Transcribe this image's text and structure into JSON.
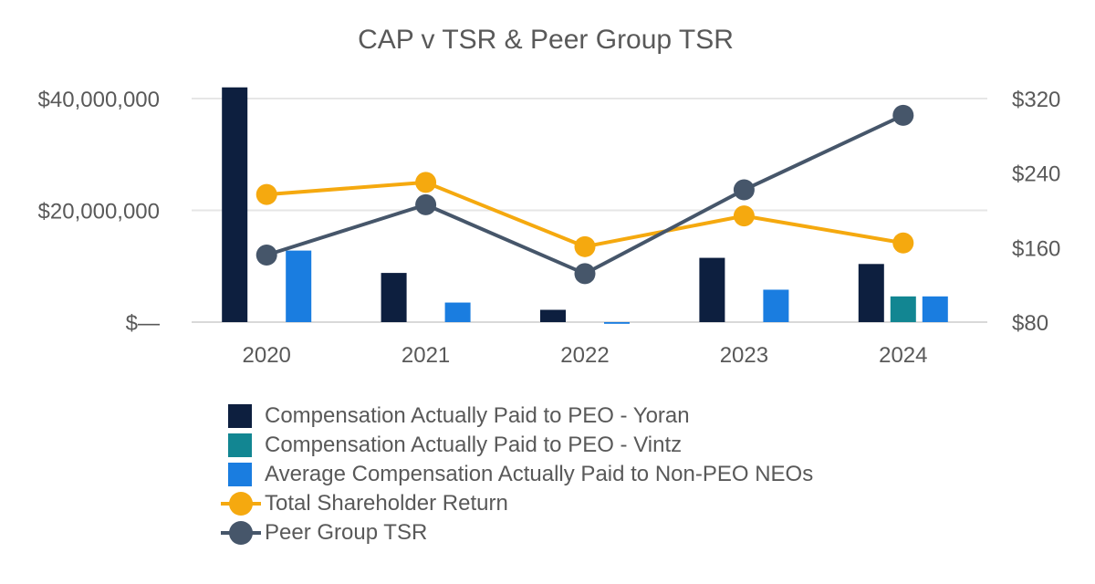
{
  "chart_data": {
    "type": "bar+line",
    "title": "CAP v TSR & Peer Group TSR",
    "categories": [
      "2020",
      "2021",
      "2022",
      "2023",
      "2024"
    ],
    "left_axis": {
      "ylim": [
        0,
        40000000
      ],
      "ticks": [
        0,
        20000000,
        40000000
      ],
      "tick_labels": [
        "$—",
        "$20,000,000",
        "$40,000,000"
      ]
    },
    "right_axis": {
      "ylim": [
        80,
        320
      ],
      "ticks": [
        80,
        160,
        240,
        320
      ],
      "tick_labels": [
        "$80",
        "$160",
        "$240",
        "$320"
      ]
    },
    "bar_series": [
      {
        "name": "Compensation Actually Paid to PEO - Yoran",
        "color": "#0d1f3f",
        "values": [
          42000000,
          8800000,
          2200000,
          11500000,
          10400000
        ]
      },
      {
        "name": "Compensation Actually Paid to PEO - Vintz",
        "color": "#128692",
        "values": [
          null,
          null,
          null,
          null,
          4600000
        ]
      },
      {
        "name": "Average Compensation Actually Paid to Non-PEO NEOs",
        "color": "#1a7de0",
        "values": [
          12800000,
          3500000,
          -300000,
          5800000,
          4600000
        ]
      }
    ],
    "line_series": [
      {
        "name": "Total Shareholder Return",
        "color": "#f5a90f",
        "values": [
          217,
          230,
          161,
          194,
          165
        ]
      },
      {
        "name": "Peer Group TSR",
        "color": "#46566a",
        "values": [
          152,
          206,
          132,
          222,
          302
        ]
      }
    ],
    "grid": true,
    "legend_position": "bottom"
  },
  "legend": {
    "items": [
      {
        "label": "Compensation Actually Paid to PEO - Yoran",
        "kind": "bar",
        "color": "#0d1f3f"
      },
      {
        "label": "Compensation Actually Paid to PEO - Vintz",
        "kind": "bar",
        "color": "#128692"
      },
      {
        "label": "Average Compensation Actually Paid to Non-PEO NEOs",
        "kind": "bar",
        "color": "#1a7de0"
      },
      {
        "label": "Total Shareholder Return",
        "kind": "line",
        "color": "#f5a90f"
      },
      {
        "label": "Peer Group TSR",
        "kind": "line",
        "color": "#46566a"
      }
    ]
  }
}
